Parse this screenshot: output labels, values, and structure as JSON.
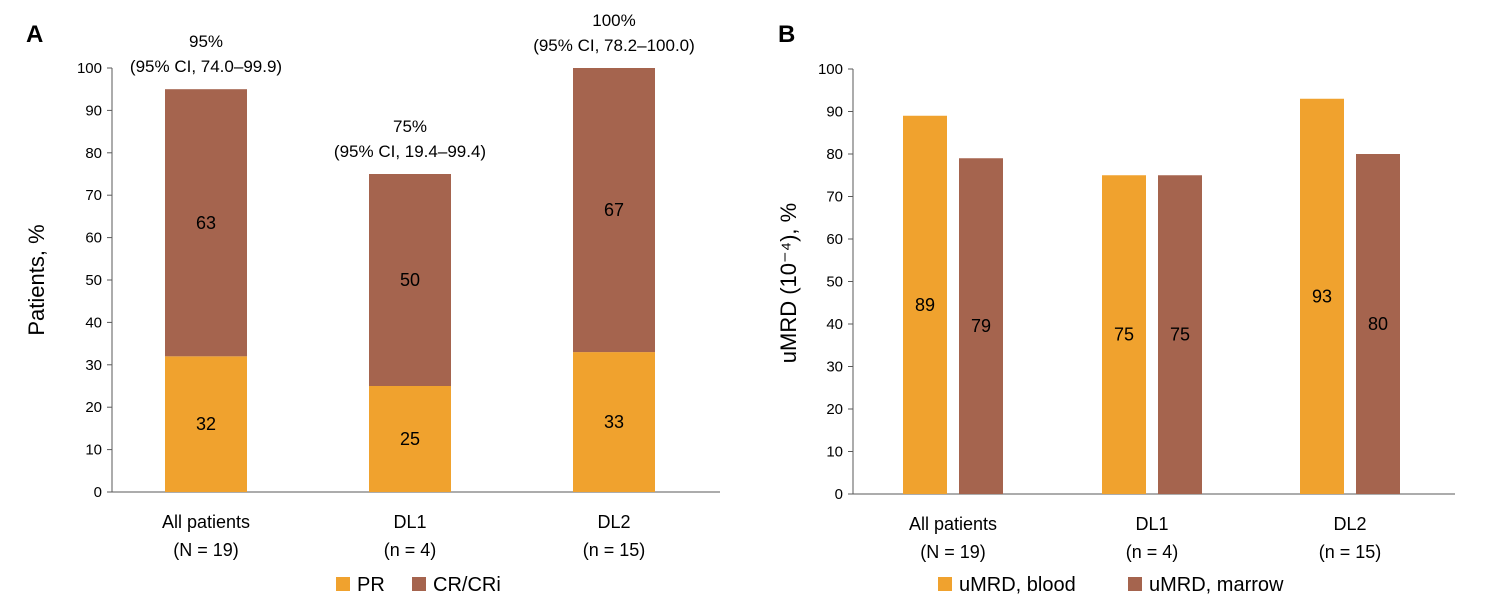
{
  "colors": {
    "orange": "#F0A22E",
    "brown": "#A5644E",
    "axis": "#595959"
  },
  "chart_data": [
    {
      "panel": "A",
      "type": "bar",
      "stacked": true,
      "ylabel": "Patients, %",
      "ylim": [
        0,
        100
      ],
      "yticks": [
        0,
        10,
        20,
        30,
        40,
        50,
        60,
        70,
        80,
        90,
        100
      ],
      "categories": [
        {
          "line1": "All patients",
          "line2": "(N = 19)"
        },
        {
          "line1": "DL1",
          "line2": "(n = 4)"
        },
        {
          "line1": "DL2",
          "line2": "(n = 15)"
        }
      ],
      "series": [
        {
          "name": "PR",
          "color": "#F0A22E",
          "values": [
            32,
            25,
            33
          ]
        },
        {
          "name": "CR/CRi",
          "color": "#A5644E",
          "values": [
            63,
            50,
            67
          ]
        }
      ],
      "totals": [
        95,
        75,
        100
      ],
      "annotations": [
        {
          "line1": "95%",
          "line2": "(95% CI, 74.0–99.9)"
        },
        {
          "line1": "75%",
          "line2": "(95% CI, 19.4–99.4)"
        },
        {
          "line1": "100%",
          "line2": "(95% CI, 78.2–100.0)"
        }
      ],
      "legend_position": "bottom"
    },
    {
      "panel": "B",
      "type": "bar",
      "stacked": false,
      "ylabel": "uMRD (10⁻⁴), %",
      "ylim": [
        0,
        100
      ],
      "yticks": [
        0,
        10,
        20,
        30,
        40,
        50,
        60,
        70,
        80,
        90,
        100
      ],
      "categories": [
        {
          "line1": "All patients",
          "line2": "(N = 19)"
        },
        {
          "line1": "DL1",
          "line2": "(n = 4)"
        },
        {
          "line1": "DL2",
          "line2": "(n = 15)"
        }
      ],
      "series": [
        {
          "name": "uMRD, blood",
          "color": "#F0A22E",
          "values": [
            89,
            75,
            93
          ]
        },
        {
          "name": "uMRD, marrow",
          "color": "#A5644E",
          "values": [
            79,
            75,
            80
          ]
        }
      ],
      "legend_position": "bottom"
    }
  ]
}
